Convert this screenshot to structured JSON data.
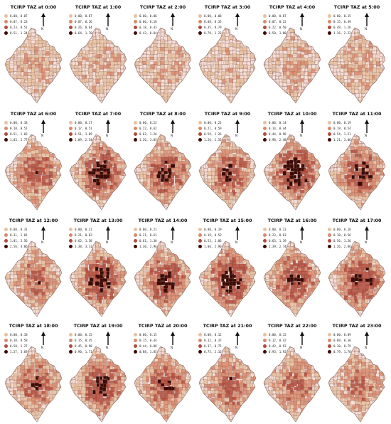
{
  "figure": {
    "north_label": "N",
    "class_colors": [
      "#e8c1a0",
      "#d98a6c",
      "#b34a3a",
      "#3d0b06"
    ],
    "map_base_color": "#f7ded6",
    "outline_color": "#8a6a62",
    "panels": [
      {
        "title": "TCIRP TAZ at 0:00",
        "legend": [
          "0.00, 0.07",
          "0.07, 0.23",
          "0.23, 0.51",
          "0.51, 1.24"
        ],
        "intensity": 0.15
      },
      {
        "title": "TCIRP TAZ at 1:00",
        "legend": [
          "0.00, 0.07",
          "0.07, 0.26",
          "0.26, 0.64",
          "0.64, 1.70"
        ],
        "intensity": 0.15
      },
      {
        "title": "TCIRP TAZ at 2:00",
        "legend": [
          "0.00, 0.06",
          "0.06, 0.18",
          "0.18, 0.43",
          "0.43, 0.84"
        ],
        "intensity": 0.15
      },
      {
        "title": "TCIRP TAZ at 3:00",
        "legend": [
          "0.00, 0.08",
          "0.08, 0.35",
          "0.35, 0.79",
          "0.79, 1.23"
        ],
        "intensity": 0.1
      },
      {
        "title": "TCIRP TAZ at 4:00",
        "legend": [
          "0.00, 0.07",
          "0.07, 0.22",
          "0.22, 0.50",
          "0.50, 1.08"
        ],
        "intensity": 0.15
      },
      {
        "title": "TCIRP TAZ at 5:00",
        "legend": [
          "0.00, 0.15",
          "0.15, 0.49",
          "0.49, 1.26",
          "1.26, 2.22"
        ],
        "intensity": 0.2
      },
      {
        "title": "TCIRP TAZ at 6:00",
        "legend": [
          "0.00, 0.18",
          "0.18, 0.51",
          "0.51, 1.03",
          "1.03, 2.77"
        ],
        "intensity": 0.45
      },
      {
        "title": "TCIRP TAZ at 7:00",
        "legend": [
          "0.00, 0.17",
          "0.17, 0.51",
          "0.51, 1.09",
          "1.09, 2.54"
        ],
        "intensity": 0.6
      },
      {
        "title": "TCIRP TAZ at 8:00",
        "legend": [
          "0.00, 0.22",
          "0.22, 0.62",
          "0.62, 1.26",
          "1.26, 3.05"
        ],
        "intensity": 0.55
      },
      {
        "title": "TCIRP TAZ at 9:00",
        "legend": [
          "0.00, 0.21",
          "0.21, 0.59",
          "0.59, 1.26",
          "1.26, 2.56"
        ],
        "intensity": 0.5
      },
      {
        "title": "TCIRP TAZ at 10:00",
        "legend": [
          "0.00, 0.14",
          "0.14, 0.44",
          "0.44, 0.98",
          "0.98, 2.48"
        ],
        "intensity": 0.7
      },
      {
        "title": "TCIRP TAZ at 11:00",
        "legend": [
          "0.00, 0.19",
          "0.19, 0.54",
          "0.54, 1.21",
          "1.21, 3.06"
        ],
        "intensity": 0.55
      },
      {
        "title": "TCIRP TAZ at 12:00",
        "legend": [
          "0.00, 0.31",
          "0.31, 1.01",
          "1.01, 2.56",
          "2.56, 4.86"
        ],
        "intensity": 0.4
      },
      {
        "title": "TCIRP TAZ at 13:00",
        "legend": [
          "0.00, 0.21",
          "0.21, 0.62",
          "0.62, 1.38",
          "1.38, 3.31"
        ],
        "intensity": 0.6
      },
      {
        "title": "TCIRP TAZ at 14:00",
        "legend": [
          "0.00, 0.21",
          "0.21, 0.61",
          "0.61, 1.30",
          "1.30, 2.96"
        ],
        "intensity": 0.6
      },
      {
        "title": "TCIRP TAZ at 15:00",
        "legend": [
          "0.00, 0.19",
          "0.19, 0.53",
          "0.53, 1.06",
          "1.06, 2.90"
        ],
        "intensity": 0.65
      },
      {
        "title": "TCIRP TAZ at 16:00",
        "legend": [
          "0.00, 0.23",
          "0.23, 0.63",
          "0.63, 1.39",
          "1.39, 2.74"
        ],
        "intensity": 0.55
      },
      {
        "title": "TCIRP TAZ at 17:00",
        "legend": [
          "0.00, 0.18",
          "0.18, 0.56",
          "0.56, 1.26",
          "1.26, 2.86"
        ],
        "intensity": 0.6
      },
      {
        "title": "TCIRP TAZ at 18:00",
        "legend": [
          "0.00, 0.18",
          "0.18, 0.58",
          "0.58, 1.27",
          "1.27, 3.69"
        ],
        "intensity": 0.45
      },
      {
        "title": "TCIRP TAZ at 19:00",
        "legend": [
          "0.00, 0.15",
          "0.15, 0.45",
          "0.45, 0.90",
          "0.90, 1.71"
        ],
        "intensity": 0.55
      },
      {
        "title": "TCIRP TAZ at 20:00",
        "legend": [
          "0.00, 0.15",
          "0.15, 0.44",
          "0.44, 0.88",
          "0.88, 1.85"
        ],
        "intensity": 0.5
      },
      {
        "title": "TCIRP TAZ at 21:00",
        "legend": [
          "0.00, 0.12",
          "0.12, 0.37",
          "0.37, 0.75",
          "0.75, 2.16"
        ],
        "intensity": 0.45
      },
      {
        "title": "TCIRP TAZ at 22:00",
        "legend": [
          "0.00, 0.12",
          "0.12, 0.42",
          "0.42, 0.93",
          "0.93, 1.92"
        ],
        "intensity": 0.4
      },
      {
        "title": "TCIRP TAZ at 23:00",
        "legend": [
          "0.00, 0.09",
          "0.09, 0.30",
          "0.30, 0.79",
          "0.79, 1.70"
        ],
        "intensity": 0.35
      }
    ]
  }
}
